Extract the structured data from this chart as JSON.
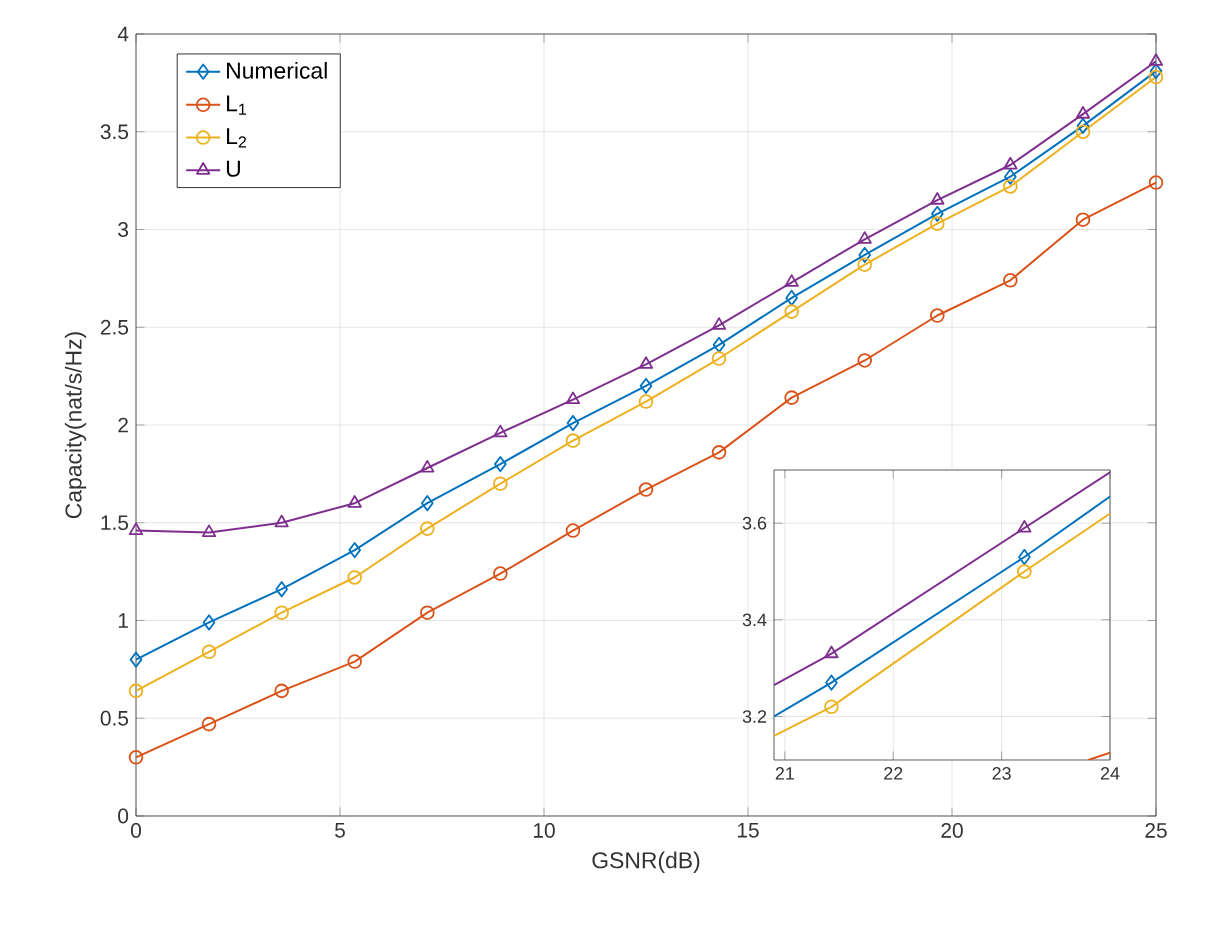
{
  "chart_data": [
    {
      "type": "line",
      "xlabel": "GSNR(dB)",
      "ylabel": "Capacity(nat/s/Hz)",
      "xlim": [
        0,
        25
      ],
      "ylim": [
        0,
        4
      ],
      "xticks": [
        0,
        5,
        10,
        15,
        20,
        25
      ],
      "yticks": [
        0,
        0.5,
        1,
        1.5,
        2,
        2.5,
        3,
        3.5,
        4
      ],
      "grid": true,
      "legend": "top left",
      "line_style": "solid",
      "x": [
        0,
        1.79,
        3.57,
        5.36,
        7.14,
        8.93,
        10.71,
        12.5,
        14.29,
        16.07,
        17.86,
        19.64,
        21.43,
        23.21,
        25
      ],
      "series": [
        {
          "name": "Numerical",
          "color": "#0072bd",
          "marker": "diamond",
          "values": [
            0.8,
            0.99,
            1.16,
            1.36,
            1.6,
            1.8,
            2.01,
            2.2,
            2.41,
            2.65,
            2.87,
            3.08,
            3.27,
            3.53,
            3.81
          ]
        },
        {
          "name": "L$_{1}$",
          "color": "#d95319",
          "marker": "circle",
          "values": [
            0.3,
            0.47,
            0.64,
            0.79,
            1.04,
            1.24,
            1.46,
            1.67,
            1.86,
            2.14,
            2.33,
            2.56,
            2.74,
            3.05,
            3.24
          ]
        },
        {
          "name": "L$_{2}$",
          "color": "#edb120",
          "marker": "circle",
          "values": [
            0.64,
            0.84,
            1.04,
            1.22,
            1.47,
            1.7,
            1.92,
            2.12,
            2.34,
            2.58,
            2.82,
            3.03,
            3.22,
            3.5,
            3.78
          ]
        },
        {
          "name": "U",
          "color": "#7e2f8e",
          "marker": "triangle",
          "values": [
            1.46,
            1.45,
            1.5,
            1.6,
            1.78,
            1.96,
            2.13,
            2.31,
            2.51,
            2.73,
            2.95,
            3.15,
            3.33,
            3.59,
            3.86
          ]
        }
      ]
    },
    {
      "type": "line",
      "xlim": [
        20.9,
        24
      ],
      "ylim": [
        3.11,
        3.71
      ],
      "xticks": [
        21,
        22,
        23,
        24
      ],
      "yticks": [
        3.2,
        3.4,
        3.6
      ],
      "grid": true,
      "line_style": "solid",
      "x": [
        20.9,
        21.43,
        23.21,
        24
      ],
      "series": [
        {
          "color": "#0072bd",
          "values": [
            3.2,
            3.27,
            3.53,
            3.655
          ]
        },
        {
          "color": "#d95319",
          "x": [
            23.8,
            24
          ],
          "values": [
            3.11,
            3.125
          ]
        },
        {
          "color": "#edb120",
          "values": [
            3.16,
            3.22,
            3.5,
            3.62
          ]
        },
        {
          "color": "#7e2f8e",
          "values": [
            3.265,
            3.33,
            3.59,
            3.705
          ]
        },
        {
          "type": "scatter",
          "color": "#0072bd",
          "marker": "diamond",
          "x": [
            21.43,
            23.21
          ],
          "values": [
            3.27,
            3.53
          ]
        },
        {
          "type": "scatter",
          "color": "#edb120",
          "marker": "circle",
          "x": [
            21.43,
            23.21
          ],
          "values": [
            3.22,
            3.5
          ]
        },
        {
          "type": "scatter",
          "color": "#7e2f8e",
          "marker": "triangle",
          "x": [
            21.43,
            23.21
          ],
          "values": [
            3.33,
            3.59
          ]
        }
      ]
    }
  ]
}
